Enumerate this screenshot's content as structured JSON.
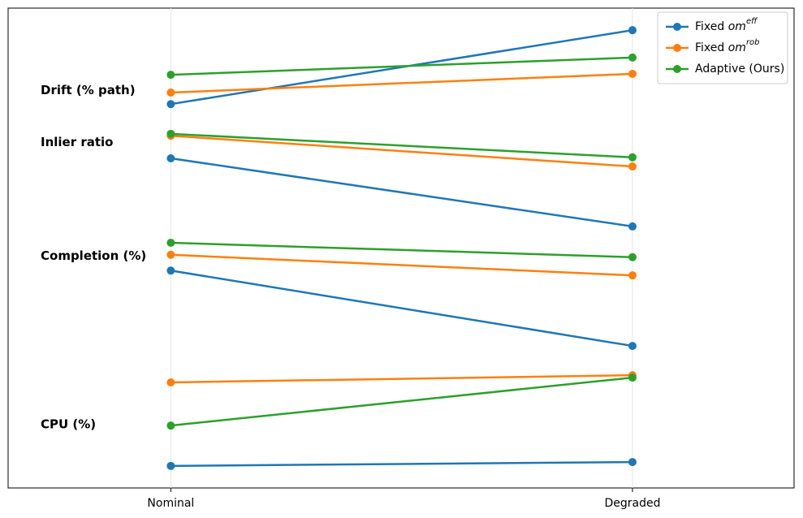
{
  "chart_data": {
    "type": "slope",
    "categories": [
      "Nominal",
      "Degraded"
    ],
    "groups": [
      "Drift (% path)",
      "Inlier ratio",
      "Completion (%)",
      "CPU (%)"
    ],
    "ylim": [
      0,
      100
    ],
    "grid": true,
    "legend": "upper right",
    "series": [
      {
        "name": "Fixed om^{eff}",
        "color": "#1f77b4",
        "values": [
          [
            80.0,
            95.4
          ],
          [
            68.7,
            54.5
          ],
          [
            45.3,
            29.6
          ],
          [
            4.6,
            5.4
          ]
        ]
      },
      {
        "name": "Fixed om^{rob}",
        "color": "#ff7f0e",
        "values": [
          [
            82.4,
            86.3
          ],
          [
            73.4,
            67.0
          ],
          [
            48.6,
            44.3
          ],
          [
            22.0,
            23.5
          ]
        ]
      },
      {
        "name": "Adaptive (Ours)",
        "color": "#2ca02c",
        "values": [
          [
            86.1,
            89.7
          ],
          [
            73.8,
            68.9
          ],
          [
            51.1,
            48.1
          ],
          [
            13.0,
            23.0
          ]
        ]
      }
    ]
  }
}
